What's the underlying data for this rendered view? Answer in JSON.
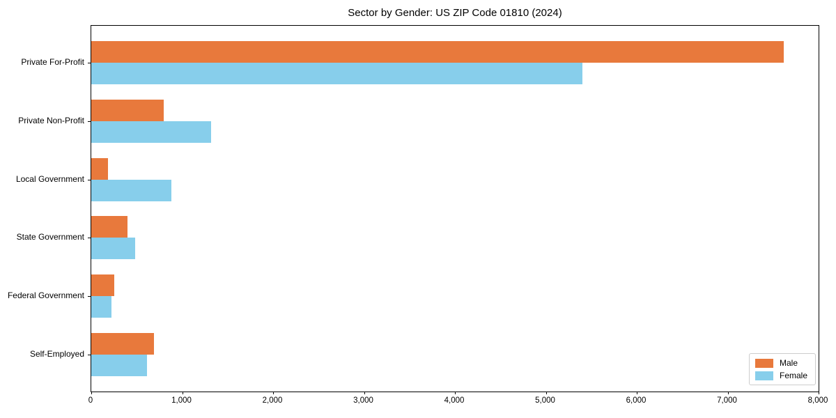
{
  "title": "Sector by Gender: US ZIP Code 01810 (2024)",
  "chart_data": {
    "type": "bar",
    "orientation": "horizontal",
    "title": "Sector by Gender: US ZIP Code 01810 (2024)",
    "categories": [
      "Private For-Profit",
      "Private Non-Profit",
      "Local Government",
      "State Government",
      "Federal Government",
      "Self-Employed"
    ],
    "series": [
      {
        "name": "Male",
        "color": "#e8793c",
        "values": [
          7620,
          800,
          185,
          400,
          250,
          690
        ]
      },
      {
        "name": "Female",
        "color": "#87ceeb",
        "values": [
          5400,
          1320,
          885,
          480,
          225,
          610
        ]
      }
    ],
    "xlabel": "",
    "ylabel": "",
    "xlim": [
      0,
      8000
    ],
    "xticks": [
      0,
      1000,
      2000,
      3000,
      4000,
      5000,
      6000,
      7000,
      8000
    ],
    "xtick_labels": [
      "0",
      "1,000",
      "2,000",
      "3,000",
      "4,000",
      "5,000",
      "6,000",
      "7,000",
      "8,000"
    ],
    "grid": false,
    "background": "#ffffff",
    "frame_color": "#000000",
    "legend": {
      "position": "lower right",
      "entries": [
        "Male",
        "Female"
      ]
    }
  }
}
